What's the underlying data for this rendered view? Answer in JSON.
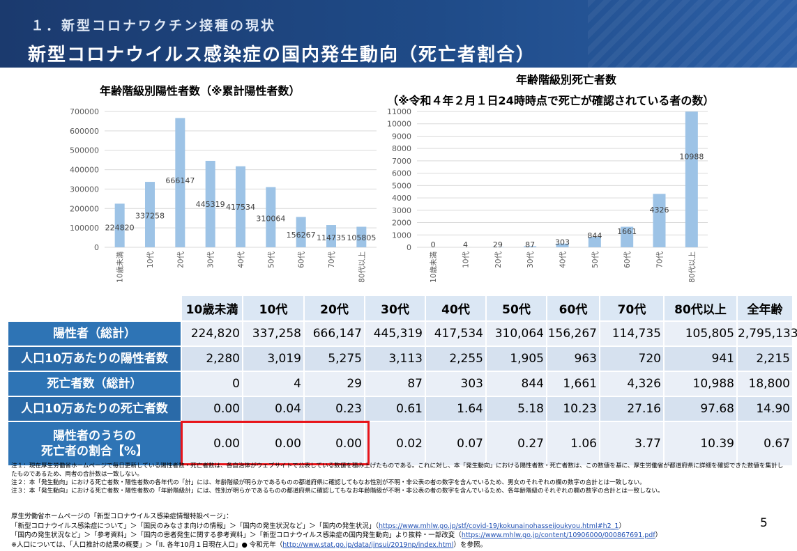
{
  "header": {
    "section_title": "１．新型コロナワクチン接種の現状",
    "main_title": "新型コロナウイルス感染症の国内発生動向（死亡者割合）"
  },
  "chart_data": [
    {
      "type": "bar",
      "title": "年齢階級別陽性者数（※累計陽性者数）",
      "categories": [
        "10歳未満",
        "10代",
        "20代",
        "30代",
        "40代",
        "50代",
        "60代",
        "70代",
        "80代以上"
      ],
      "values": [
        224820,
        337258,
        666147,
        445319,
        417534,
        310064,
        156267,
        114735,
        105805
      ],
      "ylim": [
        0,
        700000
      ],
      "yticks": [
        "0",
        "100000",
        "200000",
        "300000",
        "400000",
        "500000",
        "600000",
        "700000"
      ],
      "bar_color": "#9dc3e6",
      "grid": true
    },
    {
      "type": "bar",
      "title_line1": "年齢階級別死亡者数",
      "title_line2": "（※令和４年２月１日24時時点で死亡が確認されている者の数）",
      "categories": [
        "10歳未満",
        "10代",
        "20代",
        "30代",
        "40代",
        "50代",
        "60代",
        "70代",
        "80代以上"
      ],
      "values": [
        0,
        4,
        29,
        87,
        303,
        844,
        1661,
        4326,
        10988
      ],
      "ylim": [
        0,
        11000
      ],
      "yticks": [
        "0",
        "1000",
        "2000",
        "3000",
        "4000",
        "5000",
        "6000",
        "7000",
        "8000",
        "9000",
        "10000",
        "11000"
      ],
      "bar_color": "#9dc3e6",
      "grid": true
    }
  ],
  "table": {
    "headers": [
      "10歳未満",
      "10代",
      "20代",
      "30代",
      "40代",
      "50代",
      "60代",
      "70代",
      "80代以上",
      "全年齢"
    ],
    "rows": [
      {
        "label_line1": "陽性者（総計）",
        "label_line2": "",
        "values": [
          "224,820",
          "337,258",
          "666,147",
          "445,319",
          "417,534",
          "310,064",
          "156,267",
          "114,735",
          "105,805",
          "2,795,133"
        ]
      },
      {
        "label_line1": "人口10万あたりの陽性者数",
        "label_line2": "",
        "values": [
          "2,280",
          "3,019",
          "5,275",
          "3,113",
          "2,255",
          "1,905",
          "963",
          "720",
          "941",
          "2,215"
        ]
      },
      {
        "label_line1": "死亡者数（総計）",
        "label_line2": "",
        "values": [
          "0",
          "4",
          "29",
          "87",
          "303",
          "844",
          "1,661",
          "4,326",
          "10,988",
          "18,800"
        ]
      },
      {
        "label_line1": "人口10万あたりの死亡者数",
        "label_line2": "",
        "values": [
          "0.00",
          "0.04",
          "0.23",
          "0.61",
          "1.64",
          "5.18",
          "10.23",
          "27.16",
          "97.68",
          "14.90"
        ]
      },
      {
        "label_line1": "陽性者のうちの",
        "label_line2": "死亡者の割合【%】",
        "values": [
          "0.00",
          "0.00",
          "0.00",
          "0.02",
          "0.07",
          "0.27",
          "1.06",
          "3.77",
          "10.39",
          "0.67"
        ]
      }
    ]
  },
  "notes": [
    "注１：現在厚生労働省ホームページで毎日更新している陽性者数・死亡者数は、各自治体がウェブサイトで公表している数値を積み上げたものである。これに対し、本「発生動向」における陽性者数・死亡者数は、この数値を基に、厚生労働省が都道府県に詳細を確認できた数値を集計したものであるため、両者の合計数は一致しない。",
    "注２：本「発生動向」における死亡者数・陽性者数の各年代の「計」には、年齢階級が明らかであるものの都道府県に確認してもなお性別が不明・非公表の者の数字を含んでいるため、男女のそれぞれの欄の数字の合計とは一致しない。",
    "注３：本「発生動向」における死亡者数・陽性者数の「年齢階級計」には、性別が明らかであるものの都道府県に確認してもなお年齢階級が不明・非公表の者の数字を含んでいるため、各年齢階級のそれぞれの欄の数字の合計とは一致しない。"
  ],
  "source": {
    "line1": "厚生労働省ホームページの「新型コロナウイルス感染症情報特設ページ」：",
    "line2_text": "「新型コロナウイルス感染症について」＞「国民のみなさま向けの情報」＞「国内の発生状況など」＞「国内の発生状況」（",
    "line2_link": "https://www.mhlw.go.jp/stf/covid-19/kokunainohasseijoukyou.html#h2_1",
    "line2_end": "）",
    "line3_text": "「国内の発生状況など」＞「参考資料」＞「国内の患者発生に関する参考資料」＞「新型コロナウイルス感染症の国内発生動向」より抜粋・一部改変（",
    "line3_link": "https://www.mhlw.go.jp/content/10906000/000867691.pdf",
    "line3_end": "）",
    "line4_text": "※人口については、「人口推計の結果の概要」＞「II. 各年10月１日現在人口」● 令和元年（",
    "line4_link": "http://www.stat.go.jp/data/jinsui/2019np/index.html",
    "line4_end": "）を参照。"
  },
  "page_number": "5",
  "colors": {
    "header_bg": "#1f4b88",
    "row_header": "#2e74b5",
    "highlight": "#e8141a",
    "bar": "#9dc3e6"
  }
}
